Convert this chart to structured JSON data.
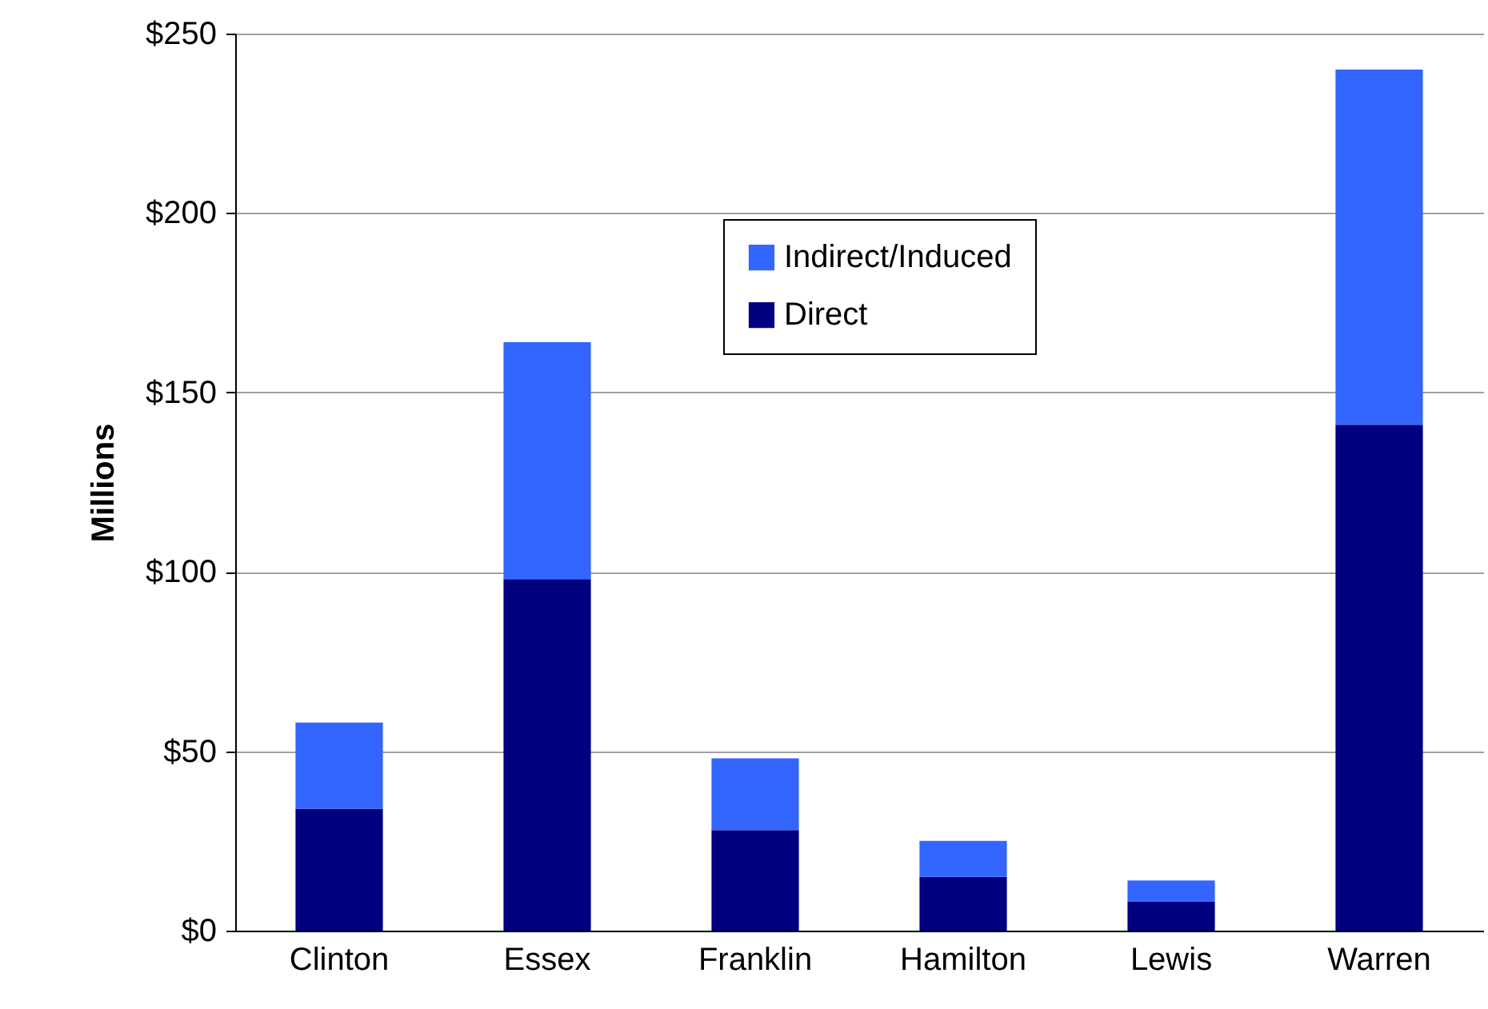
{
  "chart_data": {
    "type": "bar",
    "ylabel": "Millions",
    "categories": [
      "Clinton",
      "Essex",
      "Franklin",
      "Hamilton",
      "Lewis",
      "Warren"
    ],
    "stacked": true,
    "series": [
      {
        "name": "Direct",
        "color": "#000080",
        "values": [
          34,
          98,
          28,
          15,
          8,
          141
        ]
      },
      {
        "name": "Indirect/Induced",
        "color": "#3366ff",
        "values": [
          24,
          66,
          20,
          10,
          6,
          99
        ]
      }
    ],
    "ylim": [
      0,
      250
    ],
    "yticks": [
      {
        "value": 0,
        "label": "$0"
      },
      {
        "value": 50,
        "label": "$50"
      },
      {
        "value": 100,
        "label": "$100"
      },
      {
        "value": 150,
        "label": "$150"
      },
      {
        "value": 200,
        "label": "$200"
      },
      {
        "value": 250,
        "label": "$250"
      }
    ],
    "grid": "y",
    "legend": "top"
  }
}
